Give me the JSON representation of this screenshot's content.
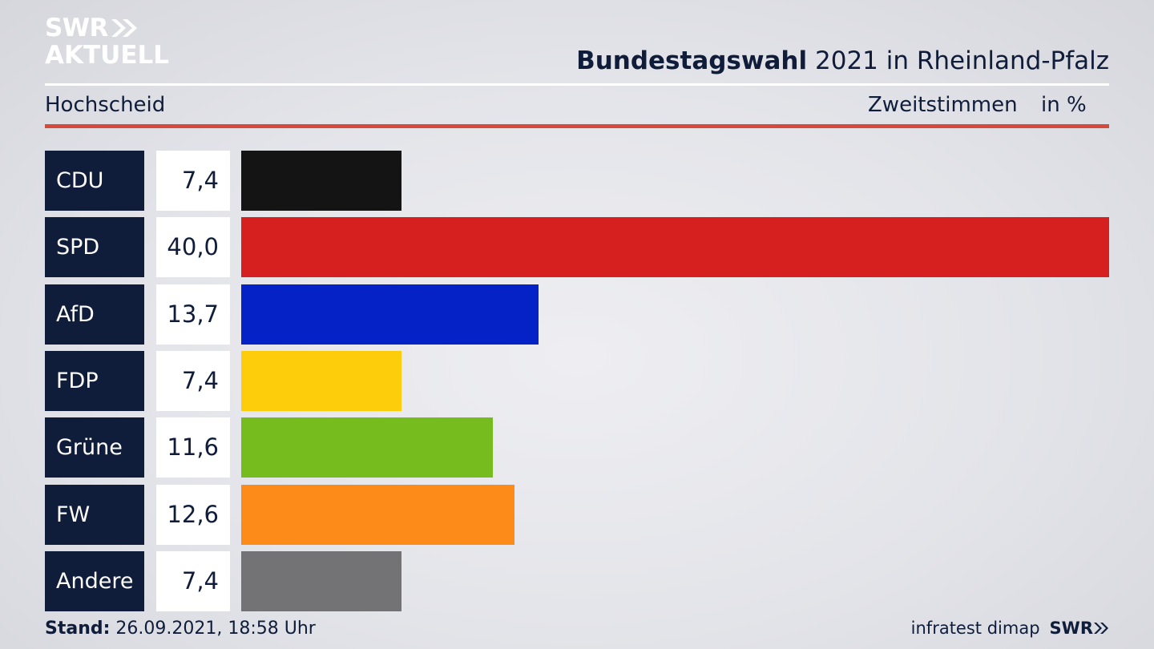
{
  "brand": {
    "line1": "SWR",
    "line2": "AKTUELL",
    "footer_brand": "SWR"
  },
  "header": {
    "title_bold": "Bundestagswahl",
    "title_rest": "2021 in Rheinland-Pfalz",
    "subtitle": "Hochscheid",
    "measure": "Zweitstimmen",
    "unit": "in %"
  },
  "footer": {
    "stand_label": "Stand:",
    "stand_value": "26.09.2021, 18:58 Uhr",
    "source": "infratest dimap"
  },
  "chart_data": {
    "type": "bar",
    "title": "Bundestagswahl 2021 in Rheinland-Pfalz",
    "categories": [
      "CDU",
      "SPD",
      "AfD",
      "FDP",
      "Grüne",
      "FW",
      "Andere"
    ],
    "values": [
      7.4,
      40.0,
      13.7,
      7.4,
      11.6,
      12.6,
      7.4
    ],
    "value_labels": [
      "7,4",
      "40,0",
      "13,7",
      "7,4",
      "11,6",
      "12,6",
      "7,4"
    ],
    "colors": [
      "#141414",
      "#d6201f",
      "#0422c6",
      "#fdcd0b",
      "#77bc1f",
      "#fd8b1a",
      "#737375"
    ],
    "xlim": [
      0,
      40
    ],
    "orientation": "horizontal"
  }
}
